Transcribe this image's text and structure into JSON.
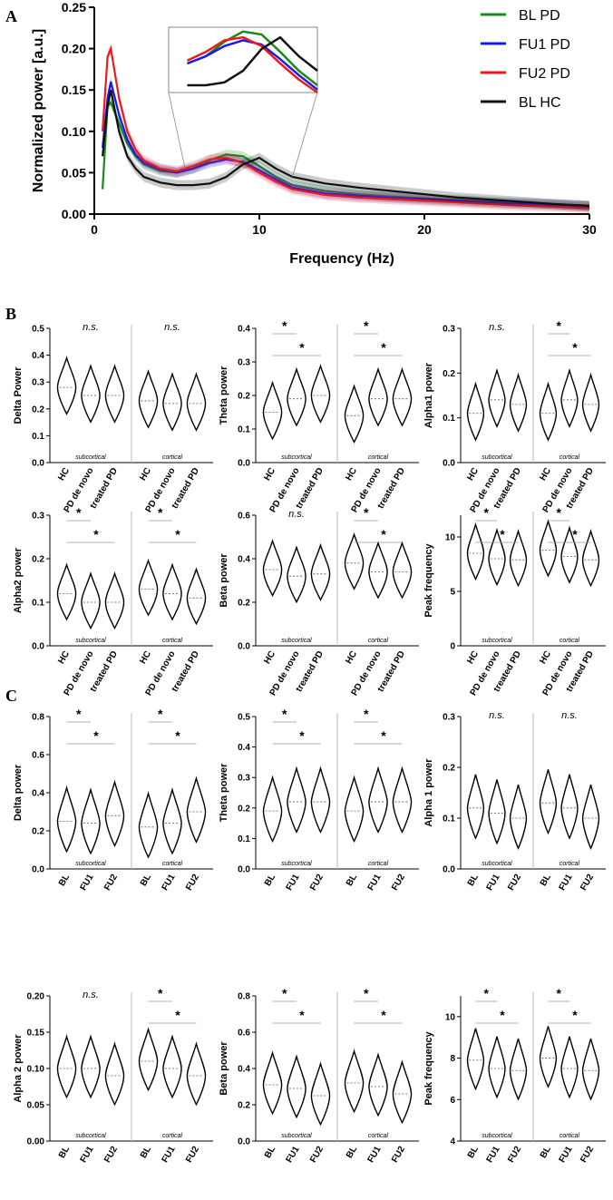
{
  "panels": [
    "A",
    "B",
    "C"
  ],
  "chart_data": [
    {
      "type": "line",
      "panel": "A",
      "xlabel": "Frequency (Hz)",
      "ylabel": "Normalized power [a.u.]",
      "xlim": [
        0,
        30
      ],
      "ylim": [
        0,
        0.25
      ],
      "xticks": [
        "0",
        "10",
        "20",
        "30"
      ],
      "yticks": [
        "0.00",
        "0.05",
        "0.10",
        "0.15",
        "0.20",
        "0.25"
      ],
      "legend_position": "top-right",
      "series": [
        {
          "name": "BL PD",
          "color": "#1a8a1a",
          "x": [
            0.5,
            0.8,
            1,
            1.5,
            2,
            2.5,
            3,
            4,
            5,
            6,
            7,
            8,
            9,
            10,
            11,
            12,
            14,
            16,
            18,
            20,
            22,
            25,
            28,
            30
          ],
          "y": [
            0.03,
            0.13,
            0.135,
            0.11,
            0.085,
            0.07,
            0.06,
            0.052,
            0.05,
            0.055,
            0.065,
            0.072,
            0.07,
            0.058,
            0.045,
            0.035,
            0.028,
            0.024,
            0.021,
            0.019,
            0.017,
            0.014,
            0.012,
            0.01
          ]
        },
        {
          "name": "FU1 PD",
          "color": "#1a1aee",
          "x": [
            0.5,
            0.8,
            1,
            1.5,
            2,
            2.5,
            3,
            4,
            5,
            6,
            7,
            8,
            9,
            10,
            11,
            12,
            14,
            16,
            18,
            20,
            22,
            25,
            28,
            30
          ],
          "y": [
            0.08,
            0.14,
            0.16,
            0.12,
            0.09,
            0.072,
            0.062,
            0.054,
            0.05,
            0.055,
            0.062,
            0.066,
            0.063,
            0.053,
            0.042,
            0.032,
            0.025,
            0.022,
            0.02,
            0.018,
            0.016,
            0.013,
            0.011,
            0.009
          ]
        },
        {
          "name": "FU2 PD",
          "color": "#ee1a1a",
          "x": [
            0.5,
            0.8,
            1,
            1.5,
            2,
            2.5,
            3,
            4,
            5,
            6,
            7,
            8,
            9,
            10,
            11,
            12,
            14,
            16,
            18,
            20,
            22,
            25,
            28,
            30
          ],
          "y": [
            0.1,
            0.19,
            0.2,
            0.14,
            0.1,
            0.078,
            0.065,
            0.055,
            0.052,
            0.058,
            0.066,
            0.068,
            0.062,
            0.05,
            0.039,
            0.03,
            0.023,
            0.02,
            0.018,
            0.016,
            0.014,
            0.011,
            0.009,
            0.007
          ]
        },
        {
          "name": "BL HC",
          "color": "#111111",
          "x": [
            0.5,
            0.8,
            1,
            1.5,
            2,
            2.5,
            3,
            4,
            5,
            6,
            7,
            8,
            9,
            10,
            11,
            12,
            14,
            16,
            18,
            20,
            22,
            25,
            28,
            30
          ],
          "y": [
            0.07,
            0.13,
            0.15,
            0.1,
            0.07,
            0.055,
            0.045,
            0.038,
            0.035,
            0.035,
            0.037,
            0.045,
            0.06,
            0.068,
            0.055,
            0.045,
            0.037,
            0.032,
            0.028,
            0.024,
            0.02,
            0.016,
            0.012,
            0.01
          ]
        }
      ]
    },
    {
      "type": "violin",
      "panel": "B",
      "groups": [
        "HC",
        "PD de novo",
        "treated PD"
      ],
      "regions": [
        "subcortical",
        "cortical"
      ],
      "plots": [
        {
          "ylabel": "Delta Power",
          "ylim": [
            0,
            0.5
          ],
          "yticks": [
            "0.0",
            "0.1",
            "0.2",
            "0.3",
            "0.4",
            "0.5"
          ],
          "subcortical": [
            0.28,
            0.25,
            0.25
          ],
          "cortical": [
            0.23,
            0.22,
            0.22
          ],
          "labels": {
            "subcortical": "n.s.",
            "cortical": "n.s."
          }
        },
        {
          "ylabel": "Theta power",
          "ylim": [
            0,
            0.4
          ],
          "yticks": [
            "0.0",
            "0.1",
            "0.2",
            "0.3",
            "0.4"
          ],
          "subcortical": [
            0.15,
            0.19,
            0.2
          ],
          "cortical": [
            0.14,
            0.19,
            0.19
          ],
          "labels": {
            "subcortical": "*",
            "cortical": "*"
          }
        },
        {
          "ylabel": "Alpha1 power",
          "ylim": [
            0,
            0.3
          ],
          "yticks": [
            "0.0",
            "0.1",
            "0.2",
            "0.3"
          ],
          "subcortical": [
            0.11,
            0.14,
            0.13
          ],
          "cortical": [
            0.11,
            0.14,
            0.13
          ],
          "labels": {
            "subcortical": "n.s.",
            "cortical": "*"
          }
        },
        {
          "ylabel": "Alpha2 power",
          "ylim": [
            0,
            0.3
          ],
          "yticks": [
            "0.0",
            "0.1",
            "0.2",
            "0.3"
          ],
          "subcortical": [
            0.12,
            0.1,
            0.1
          ],
          "cortical": [
            0.13,
            0.12,
            0.11
          ],
          "labels": {
            "subcortical": "*",
            "cortical": "*"
          }
        },
        {
          "ylabel": "Beta power",
          "ylim": [
            0,
            0.6
          ],
          "yticks": [
            "0.0",
            "0.2",
            "0.4",
            "0.6"
          ],
          "subcortical": [
            0.35,
            0.32,
            0.33
          ],
          "cortical": [
            0.38,
            0.34,
            0.34
          ],
          "labels": {
            "subcortical": "n.s.",
            "cortical": "*"
          }
        },
        {
          "ylabel": "Peak frequency",
          "ylim": [
            0,
            12
          ],
          "yticks": [
            "0",
            "5",
            "10"
          ],
          "subcortical": [
            8.5,
            8.0,
            7.9
          ],
          "cortical": [
            8.8,
            8.2,
            7.9
          ],
          "labels": {
            "subcortical": "*",
            "cortical": "*"
          }
        }
      ]
    },
    {
      "type": "violin",
      "panel": "C",
      "groups": [
        "BL",
        "FU1",
        "FU2"
      ],
      "regions": [
        "subcortical",
        "cortical"
      ],
      "plots": [
        {
          "ylabel": "Delta power",
          "ylim": [
            0,
            0.8
          ],
          "yticks": [
            "0.0",
            "0.2",
            "0.4",
            "0.6",
            "0.8"
          ],
          "subcortical": [
            0.25,
            0.24,
            0.28
          ],
          "cortical": [
            0.22,
            0.24,
            0.3
          ],
          "labels": {
            "subcortical": "*",
            "cortical": "*"
          }
        },
        {
          "ylabel": "Theta power",
          "ylim": [
            0,
            0.5
          ],
          "yticks": [
            "0.0",
            "0.1",
            "0.2",
            "0.3",
            "0.4",
            "0.5"
          ],
          "subcortical": [
            0.19,
            0.22,
            0.22
          ],
          "cortical": [
            0.19,
            0.22,
            0.22
          ],
          "labels": {
            "subcortical": "*",
            "cortical": "*"
          }
        },
        {
          "ylabel": "Alpha 1 power",
          "ylim": [
            0,
            0.3
          ],
          "yticks": [
            "0.0",
            "0.1",
            "0.2",
            "0.3"
          ],
          "subcortical": [
            0.12,
            0.11,
            0.1
          ],
          "cortical": [
            0.13,
            0.12,
            0.1
          ],
          "labels": {
            "subcortical": "n.s.",
            "cortical": "n.s."
          }
        },
        {
          "ylabel": "Alpha 2 power",
          "ylim": [
            0,
            0.2
          ],
          "yticks": [
            "0.00",
            "0.05",
            "0.10",
            "0.15",
            "0.20"
          ],
          "subcortical": [
            0.1,
            0.1,
            0.09
          ],
          "cortical": [
            0.11,
            0.1,
            0.09
          ],
          "labels": {
            "subcortical": "n.s.",
            "cortical": "*"
          }
        },
        {
          "ylabel": "Beta power",
          "ylim": [
            0,
            0.8
          ],
          "yticks": [
            "0.0",
            "0.2",
            "0.4",
            "0.6",
            "0.8"
          ],
          "subcortical": [
            0.31,
            0.29,
            0.25
          ],
          "cortical": [
            0.32,
            0.3,
            0.26
          ],
          "labels": {
            "subcortical": "*",
            "cortical": "*"
          }
        },
        {
          "ylabel": "Peak frequency",
          "ylim": [
            4,
            11
          ],
          "yticks": [
            "4",
            "6",
            "8",
            "10"
          ],
          "subcortical": [
            7.9,
            7.5,
            7.4
          ],
          "cortical": [
            8.0,
            7.5,
            7.4
          ],
          "labels": {
            "subcortical": "*",
            "cortical": "*"
          }
        }
      ]
    }
  ]
}
